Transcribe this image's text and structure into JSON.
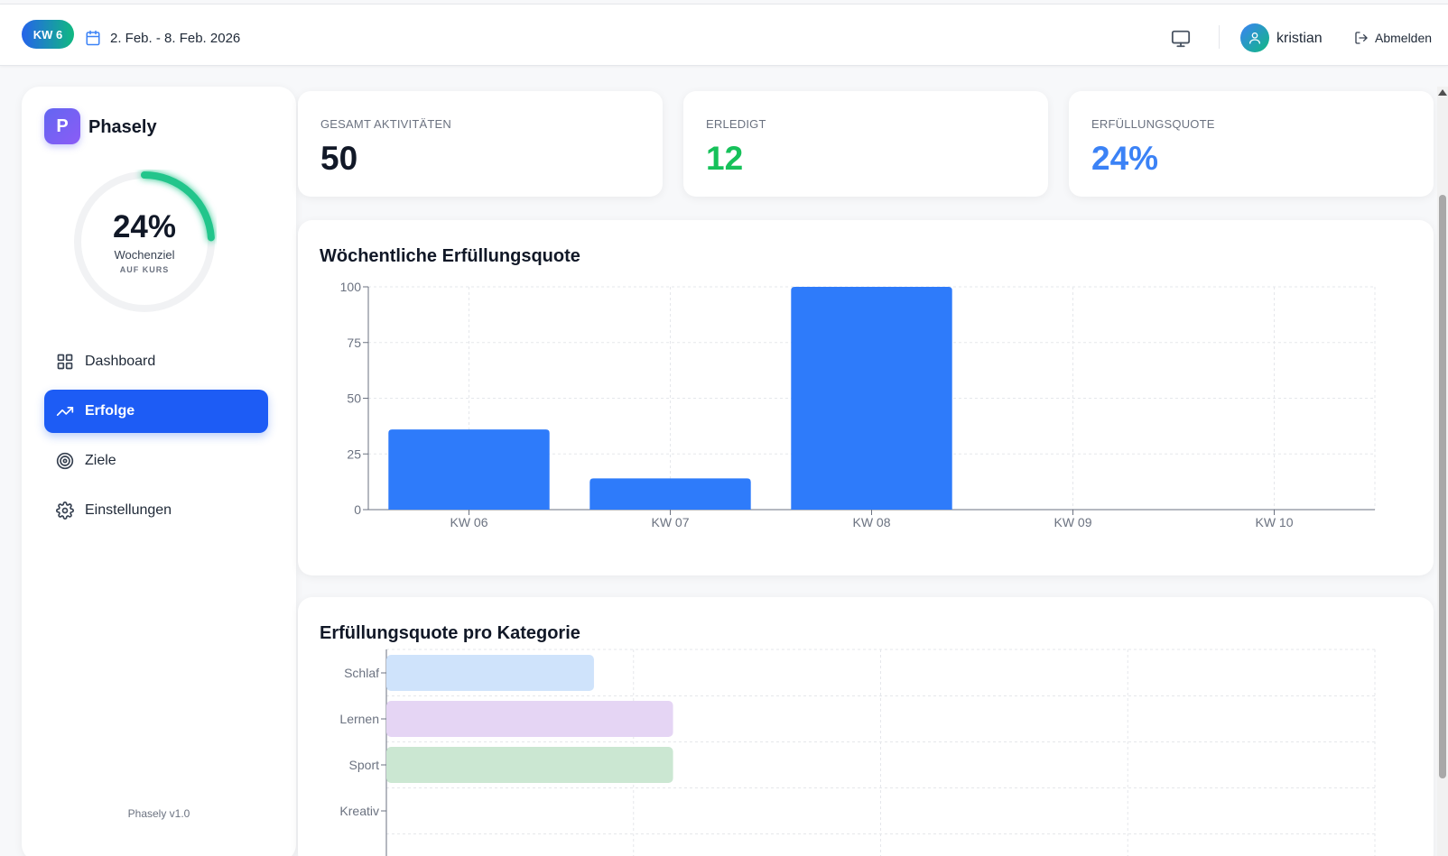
{
  "header": {
    "week_badge": "KW 6",
    "date_range": "2. Feb. - 8. Feb. 2026",
    "icons": {
      "calendar": "calendar-icon",
      "monitor": "monitor-icon",
      "user": "user-icon",
      "logout": "logout-icon"
    },
    "username": "kristian",
    "logout_label": "Abmelden"
  },
  "sidebar": {
    "brand_letter": "P",
    "brand_name": "Phasely",
    "goal": {
      "percent_label": "24%",
      "progress": 0.24,
      "label": "Wochenziel",
      "status": "AUF KURS"
    },
    "nav": [
      {
        "label": "Dashboard",
        "icon": "grid-icon",
        "active": false
      },
      {
        "label": "Erfolge",
        "icon": "trending-up-icon",
        "active": true
      },
      {
        "label": "Ziele",
        "icon": "target-icon",
        "active": false
      },
      {
        "label": "Einstellungen",
        "icon": "gear-icon",
        "active": false
      }
    ],
    "version": "Phasely v1.0"
  },
  "stats": [
    {
      "label": "GESAMT AKTIVITÄTEN",
      "value": "50",
      "color": "#111827"
    },
    {
      "label": "ERLEDIGT",
      "value": "12",
      "color": "#16c15a"
    },
    {
      "label": "ERFÜLLUNGSQUOTE",
      "value": "24%",
      "color": "#3b82f6"
    }
  ],
  "colors": {
    "accent": "#1d5cf5",
    "bar": "#2e7bfa",
    "ring": "#22c58b"
  },
  "chart_data": [
    {
      "type": "bar",
      "title": "Wöchentliche Erfüllungsquote",
      "categories": [
        "KW 06",
        "KW 07",
        "KW 08",
        "KW 09",
        "KW 10"
      ],
      "values": [
        36,
        14,
        100,
        0,
        0
      ],
      "ylim": [
        0,
        100
      ],
      "yticks": [
        0,
        25,
        50,
        75,
        100
      ],
      "xlabel": "",
      "ylabel": "",
      "grid": true,
      "color": "#2e7bfa"
    },
    {
      "type": "bar",
      "orientation": "horizontal",
      "title": "Erfüllungsquote pro Kategorie",
      "categories": [
        "Schlaf",
        "Lernen",
        "Sport",
        "Kreativ"
      ],
      "values": [
        21,
        29,
        29,
        0
      ],
      "colors": [
        "#cfe3fb",
        "#e5d5f4",
        "#cbe7d2",
        "#fde2c8"
      ],
      "xlim": [
        0,
        100
      ],
      "grid": true
    }
  ]
}
